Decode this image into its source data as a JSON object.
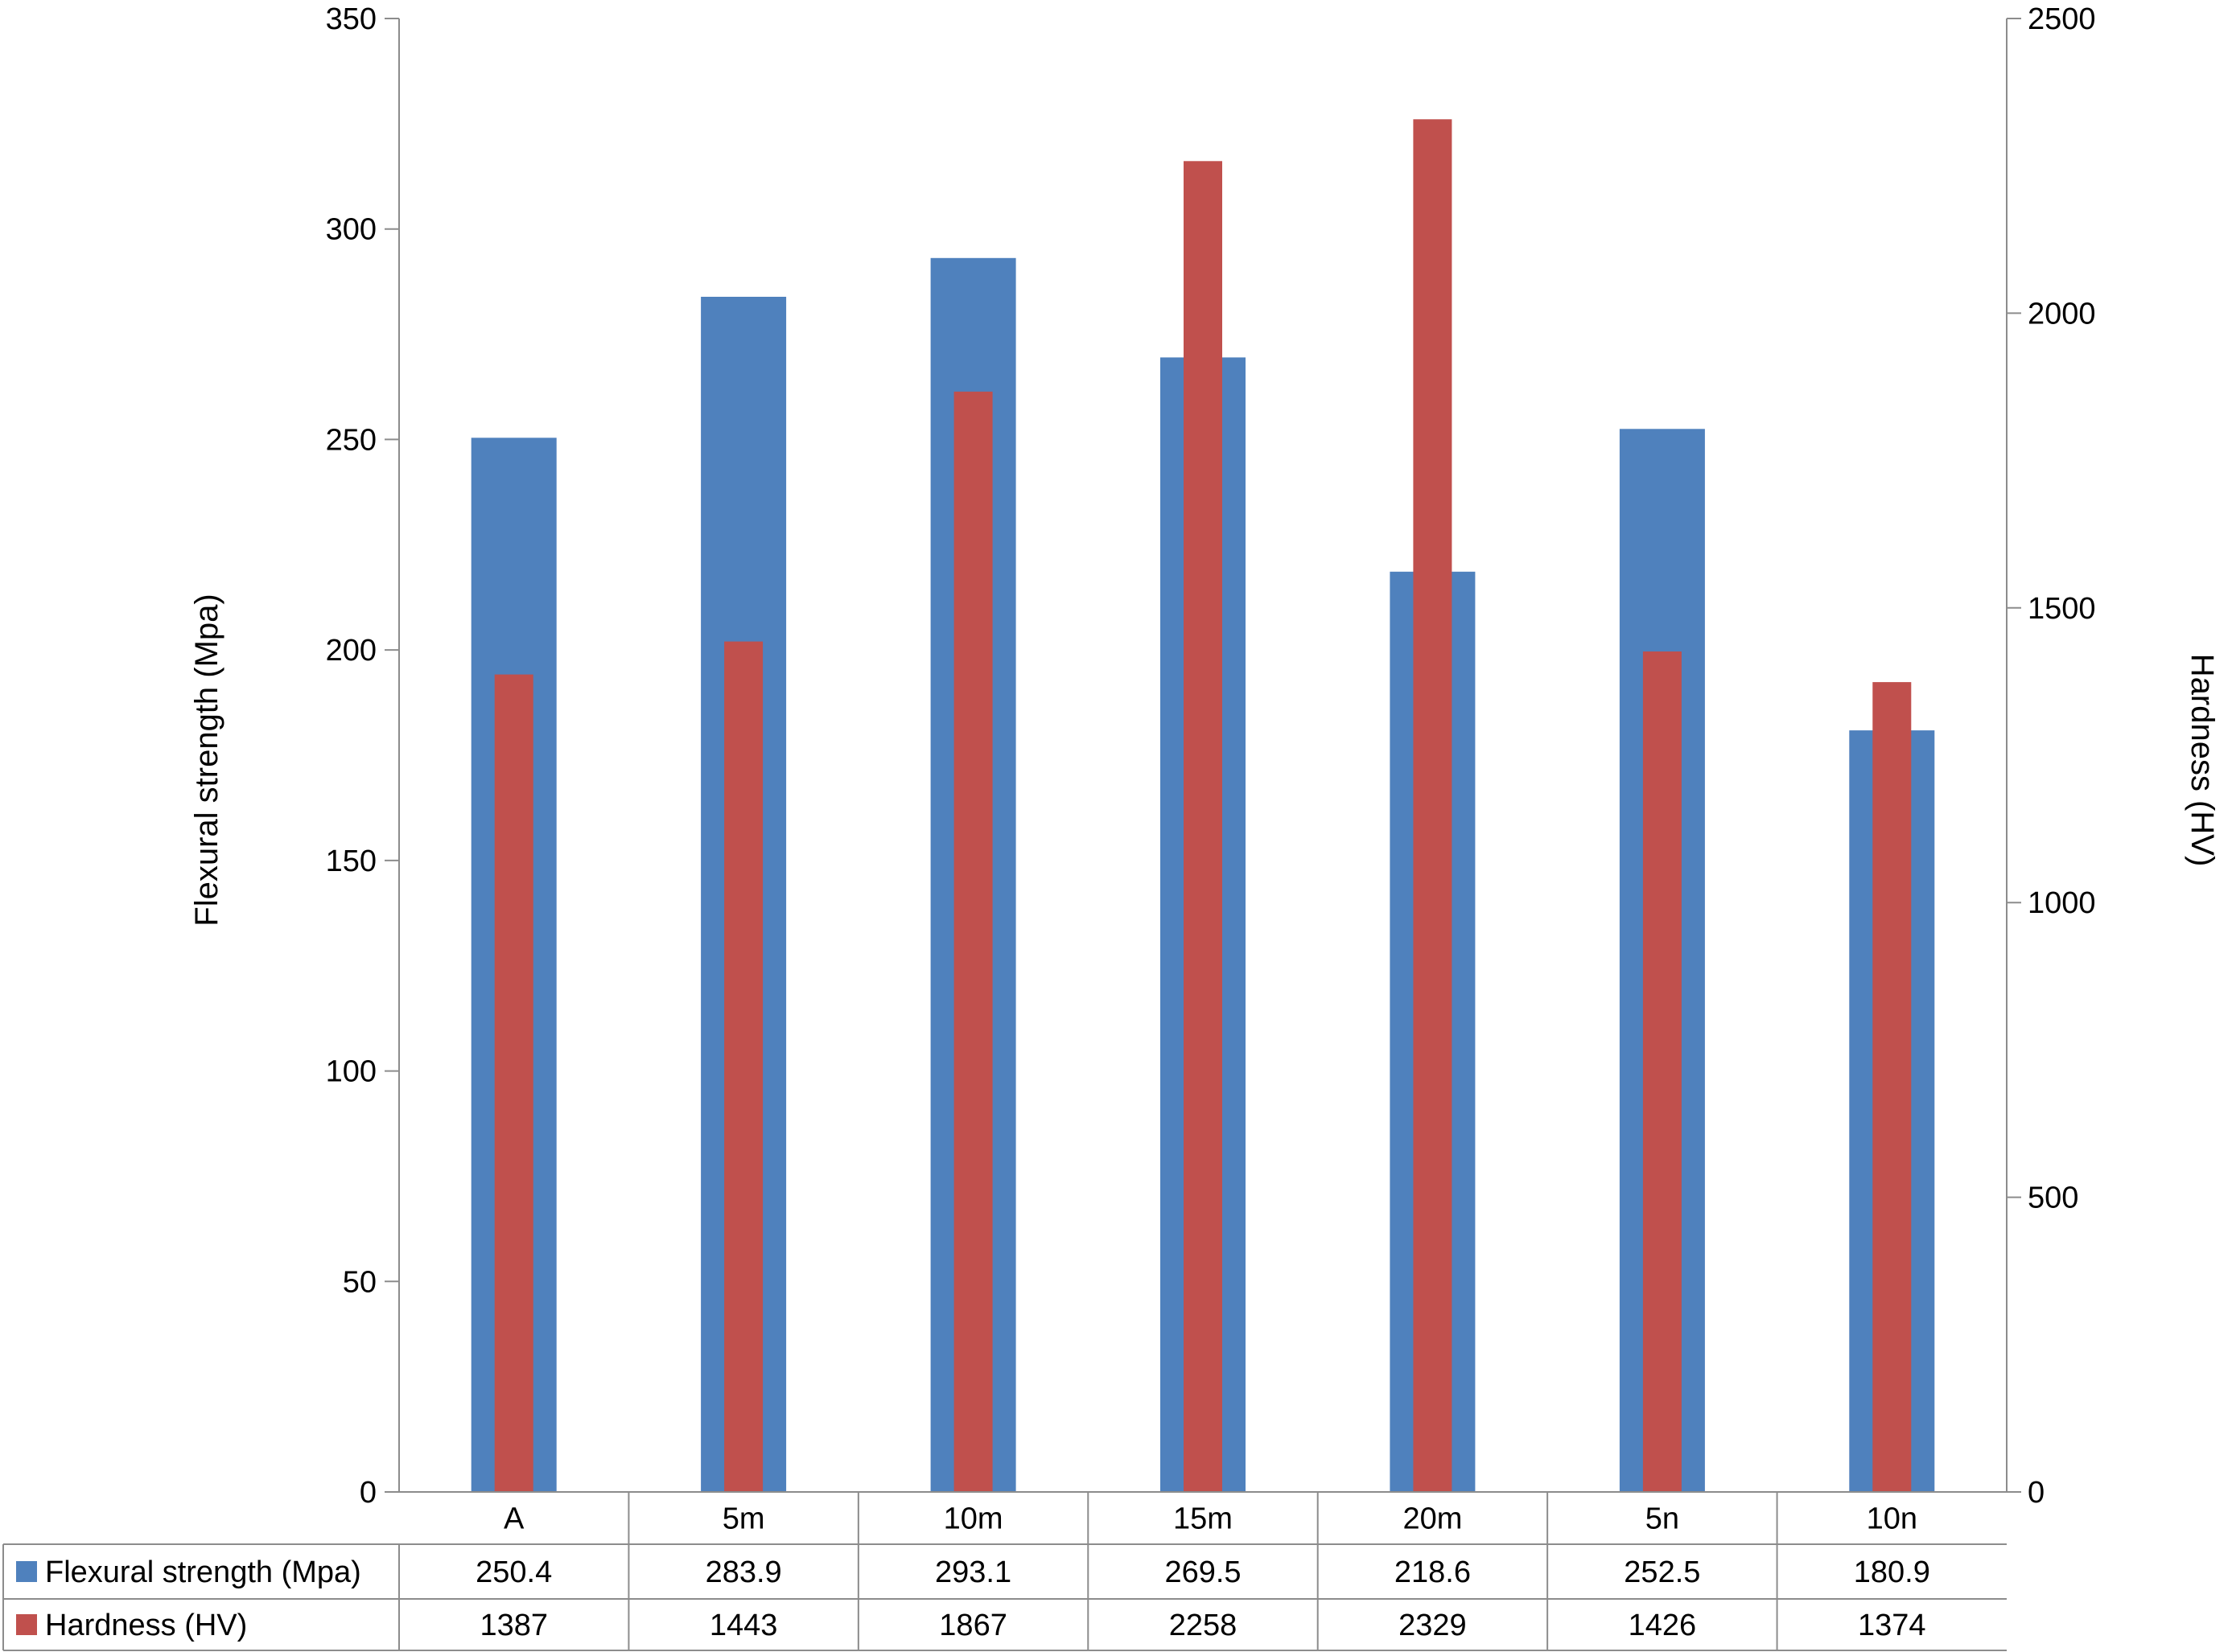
{
  "chart_data": {
    "type": "bar",
    "categories": [
      "A",
      "5m",
      "10m",
      "15m",
      "20m",
      "5n",
      "10n"
    ],
    "series": [
      {
        "name": "Flexural strength (Mpa)",
        "axis": "left",
        "color": "#4f81bd",
        "values": [
          250.4,
          283.9,
          293.1,
          269.5,
          218.6,
          252.5,
          180.9
        ],
        "display": [
          "250.4",
          "283.9",
          "293.1",
          "269.5",
          "218.6",
          "252.5",
          "180.9"
        ]
      },
      {
        "name": "Hardness (HV)",
        "axis": "right",
        "color": "#c0504d",
        "values": [
          1387,
          1443,
          1867,
          2258,
          2329,
          1426,
          1374
        ],
        "display": [
          "1387",
          "1443",
          "1867",
          "2258",
          "2329",
          "1426",
          "1374"
        ]
      }
    ],
    "ylabel": "Flexural strength (Mpa)",
    "y2label": "Hardness (HV)",
    "ylim": [
      0,
      350
    ],
    "y2lim": [
      0,
      2500
    ],
    "yticks": [
      "0",
      "50",
      "100",
      "150",
      "200",
      "250",
      "300",
      "350"
    ],
    "y2ticks": [
      "0",
      "500",
      "1000",
      "1500",
      "2000",
      "2500"
    ],
    "grid": false,
    "legend": "data table below x-axis"
  }
}
